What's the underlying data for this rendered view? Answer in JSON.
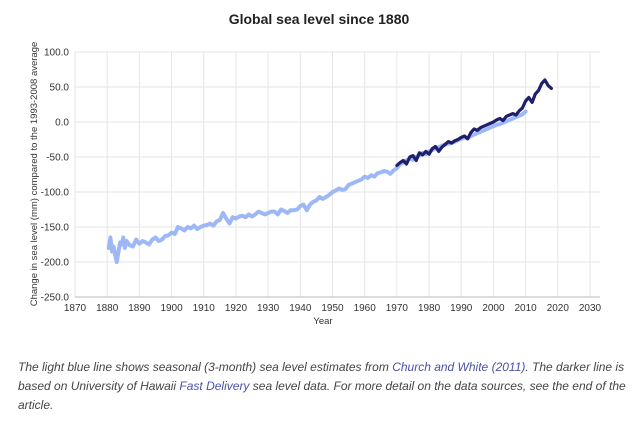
{
  "chart_data": {
    "type": "line",
    "title": "Global sea level since 1880",
    "xlabel": "Year",
    "ylabel": "Change in sea level (mm) compared to the 1993-2008 average",
    "xlim": [
      1870,
      2030
    ],
    "ylim": [
      -250,
      100
    ],
    "x_ticks": [
      "1870",
      "1880",
      "1890",
      "1900",
      "1910",
      "1920",
      "1930",
      "1940",
      "1950",
      "1960",
      "1970",
      "1980",
      "1990",
      "2000",
      "2010",
      "2020",
      "2030"
    ],
    "y_ticks": [
      "100.0",
      "50.0",
      "0.0",
      "-50.0",
      "-100.0",
      "-150.0",
      "-200.0",
      "-250.0"
    ],
    "grid": true,
    "colors": {
      "church_white": "#9db8f5",
      "hawaii": "#1f1f6b"
    },
    "series": [
      {
        "key": "church_white",
        "x": [
          1880.5,
          1881,
          1881.5,
          1882,
          1882.5,
          1883,
          1883.5,
          1884,
          1884.5,
          1885,
          1885.5,
          1886,
          1887,
          1888,
          1889,
          1890,
          1891,
          1892,
          1893,
          1894,
          1895,
          1896,
          1897,
          1898,
          1899,
          1900,
          1901,
          1902,
          1903,
          1904,
          1905,
          1906,
          1907,
          1908,
          1909,
          1910,
          1911,
          1912,
          1913,
          1914,
          1915,
          1916,
          1917,
          1918,
          1919,
          1920,
          1921,
          1922,
          1923,
          1924,
          1925,
          1926,
          1927,
          1928,
          1929,
          1930,
          1931,
          1932,
          1933,
          1934,
          1935,
          1936,
          1937,
          1938,
          1939,
          1940,
          1941,
          1942,
          1943,
          1944,
          1945,
          1946,
          1947,
          1948,
          1949,
          1950,
          1951,
          1952,
          1953,
          1954,
          1955,
          1956,
          1957,
          1958,
          1959,
          1960,
          1961,
          1962,
          1963,
          1964,
          1965,
          1966,
          1967,
          1968,
          1969,
          1970,
          1971,
          1972,
          1973,
          1974,
          1975,
          1976,
          1977,
          1978,
          1979,
          1980,
          1981,
          1982,
          1983,
          1984,
          1985,
          1986,
          1987,
          1988,
          1989,
          1990,
          1991,
          1992,
          1993,
          1994,
          1995,
          1996,
          1997,
          1998,
          1999,
          2000,
          2001,
          2002,
          2003,
          2004,
          2005,
          2006,
          2007,
          2008,
          2009,
          2010
        ],
        "y": [
          -180,
          -165,
          -185,
          -178,
          -190,
          -200,
          -185,
          -172,
          -175,
          -165,
          -180,
          -170,
          -176,
          -178,
          -168,
          -174,
          -170,
          -172,
          -175,
          -168,
          -165,
          -170,
          -168,
          -163,
          -162,
          -158,
          -160,
          -150,
          -152,
          -155,
          -150,
          -152,
          -148,
          -153,
          -150,
          -148,
          -147,
          -145,
          -148,
          -142,
          -140,
          -130,
          -138,
          -145,
          -136,
          -138,
          -135,
          -134,
          -136,
          -132,
          -135,
          -132,
          -128,
          -130,
          -132,
          -130,
          -128,
          -128,
          -132,
          -125,
          -127,
          -130,
          -126,
          -126,
          -125,
          -120,
          -118,
          -126,
          -118,
          -114,
          -112,
          -107,
          -110,
          -107,
          -104,
          -100,
          -98,
          -95,
          -97,
          -96,
          -90,
          -88,
          -86,
          -84,
          -82,
          -78,
          -80,
          -76,
          -78,
          -73,
          -72,
          -70,
          -71,
          -74,
          -69,
          -66,
          -60,
          -58,
          -55,
          -52,
          -54,
          -50,
          -48,
          -44,
          -46,
          -42,
          -40,
          -38,
          -36,
          -34,
          -32,
          -31,
          -30,
          -28,
          -26,
          -24,
          -22,
          -23,
          -20,
          -18,
          -16,
          -14,
          -12,
          -10,
          -8,
          -6,
          -4,
          -3,
          -1,
          1,
          3,
          5,
          7,
          9,
          11,
          15
        ]
      },
      {
        "key": "hawaii",
        "x": [
          1970,
          1971,
          1972,
          1973,
          1974,
          1975,
          1976,
          1977,
          1978,
          1979,
          1980,
          1981,
          1982,
          1983,
          1984,
          1985,
          1986,
          1987,
          1988,
          1989,
          1990,
          1991,
          1992,
          1993,
          1994,
          1995,
          1996,
          1997,
          1998,
          1999,
          2000,
          2001,
          2002,
          2003,
          2004,
          2005,
          2006,
          2007,
          2008,
          2009,
          2010,
          2011,
          2012,
          2013,
          2014,
          2015,
          2016,
          2017,
          2018
        ],
        "y": [
          -62,
          -58,
          -55,
          -60,
          -50,
          -48,
          -55,
          -44,
          -47,
          -42,
          -46,
          -38,
          -35,
          -42,
          -36,
          -32,
          -28,
          -30,
          -27,
          -25,
          -22,
          -20,
          -24,
          -15,
          -10,
          -12,
          -8,
          -6,
          -4,
          -2,
          0,
          3,
          5,
          2,
          8,
          10,
          12,
          10,
          16,
          20,
          30,
          35,
          28,
          40,
          45,
          55,
          60,
          52,
          48
        ]
      }
    ]
  },
  "caption": {
    "part1": "The light blue line shows seasonal (3-month) sea level estimates from ",
    "link1": "Church and White (2011)",
    "part2": ". The darker line is based on University of Hawaii ",
    "link2": "Fast Delivery",
    "part3": " sea level data. For more detail on the data sources, see the end of the article."
  }
}
